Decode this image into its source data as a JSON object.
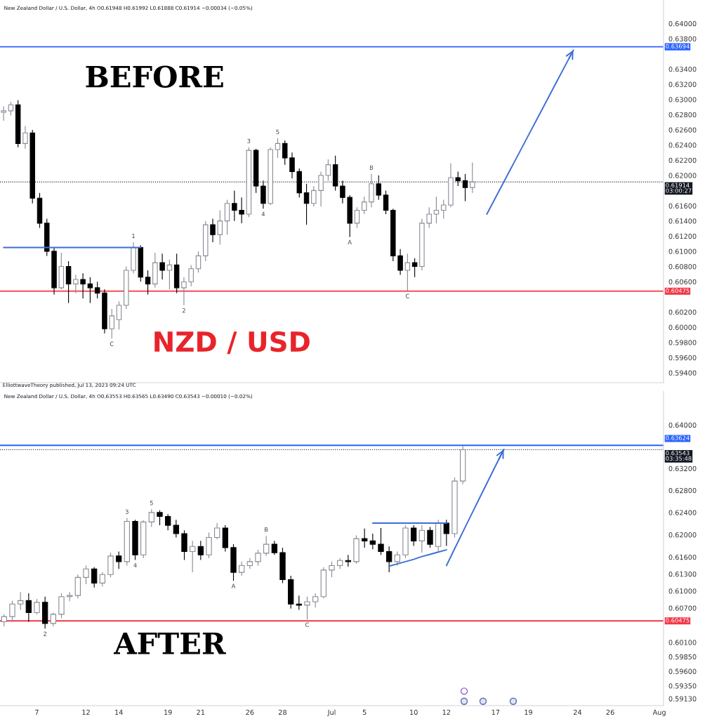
{
  "chart_data": [
    {
      "type": "candlestick",
      "title": "New Zealand Dollar / U.S. Dollar, 4h O0.61948 H0.61992 L0.61888 C0.61914 −0.00034 (−0.05%)",
      "categories": [
        null,
        null,
        null,
        null,
        null,
        null,
        null,
        null,
        null,
        null,
        null,
        null,
        null,
        null,
        null,
        null,
        null,
        null,
        null,
        null,
        null,
        null,
        null,
        null,
        null,
        null,
        null,
        null,
        null,
        null,
        null,
        null,
        null,
        null,
        null,
        null,
        null,
        null,
        null,
        null,
        null,
        null,
        null,
        null,
        null,
        null,
        null,
        null,
        null,
        null,
        null,
        null,
        null,
        null,
        null,
        null,
        null,
        null,
        null,
        null,
        null,
        null,
        null,
        null,
        null,
        null,
        null,
        null,
        null,
        null,
        null,
        null,
        null,
        null,
        null,
        null,
        null,
        null,
        null,
        null,
        null,
        null,
        null,
        null,
        null,
        null,
        null,
        null,
        null,
        null,
        null,
        null
      ],
      "ohlc": [
        [
          0.6283,
          0.6291,
          0.6272,
          0.6285
        ],
        [
          0.6285,
          0.6297,
          0.6279,
          0.6293
        ],
        [
          0.6293,
          0.6299,
          0.6237,
          0.6242
        ],
        [
          0.6242,
          0.6265,
          0.6235,
          0.6256
        ],
        [
          0.6256,
          0.626,
          0.6163,
          0.617
        ],
        [
          0.617,
          0.6177,
          0.6131,
          0.6137
        ],
        [
          0.6137,
          0.6143,
          0.6094,
          0.61
        ],
        [
          0.61,
          0.6105,
          0.6043,
          0.6052
        ],
        [
          0.6052,
          0.6098,
          0.605,
          0.608
        ],
        [
          0.608,
          0.6087,
          0.6032,
          0.6057
        ],
        [
          0.6057,
          0.6069,
          0.6045,
          0.6063
        ],
        [
          0.6063,
          0.6071,
          0.6038,
          0.6057
        ],
        [
          0.6057,
          0.6066,
          0.6032,
          0.6052
        ],
        [
          0.6052,
          0.606,
          0.6038,
          0.6045
        ],
        [
          0.6045,
          0.605,
          0.5992,
          0.5998
        ],
        [
          0.5998,
          0.6024,
          0.5985,
          0.6015
        ],
        [
          0.601,
          0.6034,
          0.5997,
          0.6029
        ],
        [
          0.6029,
          0.608,
          0.6024,
          0.6075
        ],
        [
          0.6075,
          0.6112,
          0.6071,
          0.6105
        ],
        [
          0.6105,
          0.6108,
          0.606,
          0.6066
        ],
        [
          0.6066,
          0.6075,
          0.6043,
          0.6057
        ],
        [
          0.6057,
          0.6098,
          0.6052,
          0.6085
        ],
        [
          0.6085,
          0.6097,
          0.6063,
          0.6075
        ],
        [
          0.6075,
          0.6089,
          0.605,
          0.6082
        ],
        [
          0.6082,
          0.6097,
          0.6045,
          0.6052
        ],
        [
          0.6052,
          0.6066,
          0.6029,
          0.606
        ],
        [
          0.606,
          0.6082,
          0.6054,
          0.6077
        ],
        [
          0.6077,
          0.61,
          0.6072,
          0.6094
        ],
        [
          0.6094,
          0.614,
          0.6087,
          0.6135
        ],
        [
          0.6135,
          0.6143,
          0.6112,
          0.6122
        ],
        [
          0.6122,
          0.6154,
          0.6109,
          0.614
        ],
        [
          0.614,
          0.6168,
          0.6122,
          0.6163
        ],
        [
          0.6163,
          0.618,
          0.614,
          0.6154
        ],
        [
          0.6154,
          0.6171,
          0.6137,
          0.6149
        ],
        [
          0.6149,
          0.6237,
          0.6145,
          0.6233
        ],
        [
          0.6233,
          0.6235,
          0.6177,
          0.6186
        ],
        [
          0.6186,
          0.6193,
          0.6156,
          0.6163
        ],
        [
          0.6163,
          0.6237,
          0.6161,
          0.6234
        ],
        [
          0.6234,
          0.6249,
          0.6223,
          0.6242
        ],
        [
          0.6242,
          0.6246,
          0.6214,
          0.6223
        ],
        [
          0.6223,
          0.623,
          0.6196,
          0.6205
        ],
        [
          0.6205,
          0.6209,
          0.6171,
          0.6177
        ],
        [
          0.6177,
          0.6189,
          0.6135,
          0.6163
        ],
        [
          0.6163,
          0.6186,
          0.6159,
          0.618
        ],
        [
          0.618,
          0.6205,
          0.6159,
          0.62
        ],
        [
          0.62,
          0.6221,
          0.6193,
          0.6214
        ],
        [
          0.6214,
          0.6226,
          0.618,
          0.6186
        ],
        [
          0.6186,
          0.6193,
          0.6163,
          0.6171
        ],
        [
          0.6171,
          0.6174,
          0.6119,
          0.6137
        ],
        [
          0.6137,
          0.6158,
          0.6131,
          0.6154
        ],
        [
          0.6154,
          0.6172,
          0.6149,
          0.6165
        ],
        [
          0.6165,
          0.6202,
          0.6158,
          0.6189
        ],
        [
          0.6189,
          0.62,
          0.6168,
          0.6174
        ],
        [
          0.6174,
          0.618,
          0.6149,
          0.6154
        ],
        [
          0.6154,
          0.6156,
          0.6087,
          0.6094
        ],
        [
          0.6094,
          0.6103,
          0.6069,
          0.6075
        ],
        [
          0.6075,
          0.6097,
          0.6048,
          0.6085
        ],
        [
          0.6085,
          0.6091,
          0.6066,
          0.608
        ],
        [
          0.608,
          0.6143,
          0.6075,
          0.6137
        ],
        [
          0.6137,
          0.6158,
          0.6131,
          0.6149
        ],
        [
          0.6149,
          0.6172,
          0.6137,
          0.6154
        ],
        [
          0.6154,
          0.6168,
          0.6143,
          0.6161
        ],
        [
          0.6161,
          0.6216,
          0.6158,
          0.6197
        ],
        [
          0.6197,
          0.6205,
          0.6186,
          0.6193
        ],
        [
          0.6193,
          0.6202,
          0.6166,
          0.6184
        ],
        [
          0.6184,
          0.6217,
          0.6177,
          0.61914
        ],
        null,
        null,
        null,
        null,
        null,
        null,
        null,
        null,
        null,
        null,
        null,
        null,
        null,
        null,
        null,
        null,
        null,
        null,
        null,
        null,
        null,
        null,
        null,
        null,
        null,
        null
      ],
      "colors": [
        "#878b94",
        "#878b94",
        "#000000",
        "#878b94",
        "#000000",
        "#000000",
        "#000000",
        "#000000",
        "#878b94",
        "#000000",
        "#878b94",
        "#000000",
        "#000000",
        "#000000",
        "#000000",
        "#878b94",
        "#878b94",
        "#878b94",
        "#878b94",
        "#000000",
        "#000000",
        "#878b94",
        "#000000",
        "#878b94",
        "#000000",
        "#878b94",
        "#878b94",
        "#878b94",
        "#878b94",
        "#000000",
        "#878b94",
        "#878b94",
        "#000000",
        "#000000",
        "#878b94",
        "#000000",
        "#000000",
        "#878b94",
        "#878b94",
        "#000000",
        "#000000",
        "#000000",
        "#000000",
        "#878b94",
        "#878b94",
        "#878b94",
        "#000000",
        "#000000",
        "#000000",
        "#878b94",
        "#878b94",
        "#878b94",
        "#000000",
        "#000000",
        "#000000",
        "#000000",
        "#878b94",
        "#000000",
        "#878b94",
        "#878b94",
        "#878b94",
        "#878b94",
        "#878b94",
        "#000000",
        "#000000",
        "#878b94",
        null,
        null,
        null,
        null,
        null,
        null,
        null,
        null,
        null,
        null,
        null,
        null,
        null,
        null,
        null,
        null,
        null,
        null,
        null,
        null,
        null,
        null,
        null,
        null,
        null,
        null
      ],
      "value_labels": [
        null,
        null,
        null,
        null,
        null,
        null,
        null,
        null,
        null,
        null,
        null,
        null,
        null,
        null,
        null,
        "C",
        null,
        null,
        "1",
        null,
        null,
        null,
        null,
        null,
        null,
        "2",
        null,
        null,
        null,
        null,
        null,
        null,
        null,
        null,
        "3",
        null,
        "4",
        null,
        "5",
        null,
        null,
        null,
        null,
        null,
        null,
        null,
        null,
        null,
        "A",
        null,
        null,
        "B",
        null,
        null,
        null,
        null,
        "C",
        null,
        null,
        null,
        null,
        null,
        null,
        null,
        null,
        null,
        null,
        null,
        null,
        null,
        null,
        null,
        null,
        null,
        null,
        null,
        null,
        null,
        null,
        null,
        null,
        null,
        null,
        null,
        null,
        null,
        null,
        null,
        null,
        null,
        null,
        null
      ],
      "series": [
        {
          "type": "line",
          "color": "#3d6fd6",
          "values": [
            0.6105,
            0.6105,
            0.6105,
            0.6105,
            0.6105,
            0.6105,
            0.6105,
            0.6105,
            0.6105,
            0.6105,
            0.6105,
            0.6105,
            0.6105,
            0.6105,
            0.6105,
            0.6105,
            0.6105,
            0.6105,
            0.6105,
            0.6105,
            null,
            null,
            null,
            null,
            null,
            null,
            null,
            null,
            null,
            null,
            null,
            null,
            null,
            null,
            null,
            null,
            null,
            null,
            null,
            null,
            null,
            null,
            null,
            null,
            null,
            null,
            null,
            null,
            null,
            null,
            null,
            null,
            null,
            null,
            null,
            null,
            null,
            null,
            null,
            null,
            null,
            null,
            null,
            null,
            null,
            null,
            null,
            null,
            null,
            null,
            null,
            null,
            null,
            null,
            null,
            null,
            null,
            null,
            null,
            null,
            null,
            null,
            null,
            null,
            null,
            null,
            null,
            null,
            null,
            null,
            null,
            null
          ]
        },
        {
          "type": "line",
          "color": "#3d6fd6",
          "values": [
            null,
            null,
            null,
            null,
            null,
            null,
            null,
            null,
            null,
            null,
            null,
            null,
            null,
            null,
            null,
            null,
            null,
            null,
            null,
            null,
            null,
            null,
            null,
            null,
            null,
            null,
            null,
            null,
            null,
            null,
            null,
            null,
            null,
            null,
            null,
            null,
            null,
            null,
            null,
            null,
            null,
            null,
            null,
            null,
            null,
            null,
            null,
            null,
            null,
            null,
            null,
            null,
            null,
            null,
            null,
            null,
            null,
            null,
            null,
            null,
            null,
            null,
            null,
            null,
            null,
            null,
            null,
            0.6149,
            0.6167,
            0.6185,
            0.6203,
            0.6221,
            0.6239,
            0.6257,
            0.6275,
            0.6293,
            0.6311,
            0.6329,
            0.6347,
            0.6365,
            null,
            null,
            null,
            null,
            null,
            null,
            null,
            null,
            null,
            null,
            null,
            null
          ]
        }
      ],
      "annotations": [
        "BEFORE",
        "NZD / USD"
      ],
      "ylim": [
        0.5927,
        0.6431
      ],
      "yticks": [
        {
          "value": 0.64,
          "label": "0.64000"
        },
        {
          "value": 0.638,
          "label": "0.63800"
        },
        {
          "value": 0.634,
          "label": "0.63400"
        },
        {
          "value": 0.632,
          "label": "0.63200"
        },
        {
          "value": 0.63,
          "label": "0.63000"
        },
        {
          "value": 0.628,
          "label": "0.62800"
        },
        {
          "value": 0.626,
          "label": "0.62600"
        },
        {
          "value": 0.624,
          "label": "0.62400"
        },
        {
          "value": 0.622,
          "label": "0.62200"
        },
        {
          "value": 0.62,
          "label": "0.62000"
        },
        {
          "value": 0.616,
          "label": "0.61600"
        },
        {
          "value": 0.614,
          "label": "0.61400"
        },
        {
          "value": 0.612,
          "label": "0.61200"
        },
        {
          "value": 0.61,
          "label": "0.61000"
        },
        {
          "value": 0.608,
          "label": "0.60800"
        },
        {
          "value": 0.606,
          "label": "0.60600"
        },
        {
          "value": 0.602,
          "label": "0.60200"
        },
        {
          "value": 0.6,
          "label": "0.60000"
        },
        {
          "value": 0.598,
          "label": "0.59800"
        },
        {
          "value": 0.596,
          "label": "0.59600"
        },
        {
          "value": 0.594,
          "label": "0.59400"
        }
      ],
      "ref_lines": [
        {
          "axis": "y",
          "value": 0.63694,
          "label": "0.63694",
          "color": "#2962ff"
        },
        {
          "axis": "y",
          "value": 0.61914,
          "label": "0.61914\n03:00:27",
          "color": "#131722",
          "line_style": "dotted"
        },
        {
          "axis": "y",
          "value": 0.60475,
          "label": "0.60475",
          "color": "#f23645"
        }
      ],
      "tick_labels": "y"
    },
    {
      "type": "candlestick",
      "title": "ElliottwaveTheory published, Jul 13, 2023 09:24 UTC",
      "subtitle": "New Zealand Dollar / U.S. Dollar, 4h O0.63553 H0.63565 L0.63490 C0.63543 −0.00010 (−0.02%)",
      "categories": [
        null,
        null,
        null,
        null,
        "7",
        null,
        null,
        null,
        null,
        null,
        "12",
        null,
        null,
        null,
        "14",
        null,
        null,
        null,
        null,
        null,
        "19",
        null,
        null,
        null,
        "21",
        null,
        null,
        null,
        null,
        null,
        "26",
        null,
        null,
        null,
        "28",
        null,
        null,
        null,
        null,
        null,
        "Jul",
        null,
        null,
        null,
        "5",
        null,
        null,
        null,
        null,
        null,
        "10",
        null,
        null,
        null,
        "12",
        null,
        null,
        null,
        null,
        null,
        "17",
        null,
        null,
        null,
        "19",
        null,
        null,
        null,
        null,
        null,
        "24",
        null,
        null,
        null,
        "26",
        null,
        null,
        null,
        null,
        null,
        "Aug"
      ],
      "ohlc": [
        [
          0.6046,
          0.6059,
          0.6038,
          0.6055
        ],
        [
          0.6055,
          0.6083,
          0.6046,
          0.6077
        ],
        [
          0.6077,
          0.6098,
          0.6067,
          0.6083
        ],
        [
          0.6083,
          0.6096,
          0.6046,
          0.6062
        ],
        [
          0.6062,
          0.6086,
          0.6059,
          0.608
        ],
        [
          0.608,
          0.609,
          0.6034,
          0.6043
        ],
        [
          0.6043,
          0.6062,
          0.6038,
          0.6059
        ],
        [
          0.6059,
          0.6096,
          0.6052,
          0.609
        ],
        [
          0.609,
          0.6098,
          0.6082,
          0.6092
        ],
        [
          0.6092,
          0.6129,
          0.6087,
          0.6124
        ],
        [
          0.6124,
          0.6145,
          0.6112,
          0.6139
        ],
        [
          0.6139,
          0.6142,
          0.6106,
          0.6114
        ],
        [
          0.6114,
          0.6133,
          0.6108,
          0.6129
        ],
        [
          0.6129,
          0.6168,
          0.6124,
          0.6162
        ],
        [
          0.6162,
          0.617,
          0.6139,
          0.6152
        ],
        [
          0.6152,
          0.623,
          0.6145,
          0.6224
        ],
        [
          0.6224,
          0.6227,
          0.6155,
          0.6164
        ],
        [
          0.6164,
          0.6226,
          0.6158,
          0.6223
        ],
        [
          0.6223,
          0.6246,
          0.6214,
          0.624
        ],
        [
          0.624,
          0.6244,
          0.6217,
          0.6233
        ],
        [
          0.6233,
          0.6237,
          0.6208,
          0.6217
        ],
        [
          0.6217,
          0.6227,
          0.6195,
          0.6202
        ],
        [
          0.6202,
          0.6208,
          0.6155,
          0.617
        ],
        [
          0.617,
          0.6189,
          0.6133,
          0.6179
        ],
        [
          0.6179,
          0.6189,
          0.6155,
          0.6164
        ],
        [
          0.6164,
          0.6204,
          0.6158,
          0.6195
        ],
        [
          0.6195,
          0.6221,
          0.6192,
          0.6212
        ],
        [
          0.6212,
          0.6217,
          0.617,
          0.6177
        ],
        [
          0.6177,
          0.6183,
          0.6118,
          0.6133
        ],
        [
          0.6133,
          0.6152,
          0.6127,
          0.6145
        ],
        [
          0.6145,
          0.6158,
          0.6139,
          0.6152
        ],
        [
          0.6152,
          0.6173,
          0.6145,
          0.6167
        ],
        [
          0.6167,
          0.6198,
          0.6162,
          0.6183
        ],
        [
          0.6183,
          0.6189,
          0.6164,
          0.6168
        ],
        [
          0.6168,
          0.6177,
          0.6114,
          0.612
        ],
        [
          0.612,
          0.6127,
          0.6069,
          0.6077
        ],
        [
          0.6077,
          0.6092,
          0.6067,
          0.6075
        ],
        [
          0.6075,
          0.609,
          0.605,
          0.6081
        ],
        [
          0.6081,
          0.6096,
          0.6071,
          0.609
        ],
        [
          0.609,
          0.6142,
          0.6087,
          0.6137
        ],
        [
          0.6137,
          0.6152,
          0.6124,
          0.6145
        ],
        [
          0.6145,
          0.6158,
          0.6139,
          0.6154
        ],
        [
          0.6154,
          0.6164,
          0.6143,
          0.6152
        ],
        [
          0.6152,
          0.6199,
          0.6148,
          0.6193
        ],
        [
          0.6193,
          0.6211,
          0.6177,
          0.6189
        ],
        [
          0.6189,
          0.6202,
          0.6174,
          0.6183
        ],
        [
          0.6183,
          0.6212,
          0.6164,
          0.617
        ],
        [
          0.617,
          0.6179,
          0.6133,
          0.6152
        ],
        [
          0.6152,
          0.617,
          0.6145,
          0.6164
        ],
        [
          0.6164,
          0.6217,
          0.6158,
          0.6212
        ],
        [
          0.6212,
          0.6217,
          0.618,
          0.6189
        ],
        [
          0.6189,
          0.6217,
          0.6168,
          0.6208
        ],
        [
          0.6208,
          0.6214,
          0.6177,
          0.6183
        ],
        [
          0.6179,
          0.6227,
          0.617,
          0.6221
        ],
        [
          0.6221,
          0.6227,
          0.618,
          0.6202
        ],
        [
          0.6202,
          0.6304,
          0.6195,
          0.6297
        ],
        [
          0.6297,
          0.6361,
          0.6291,
          0.63543
        ],
        null,
        null,
        null,
        null,
        null,
        null,
        null,
        null,
        null,
        null,
        null,
        null,
        null,
        null,
        null,
        null,
        null,
        null,
        null,
        null,
        null,
        null,
        null,
        null
      ],
      "colors": [
        "#878b94",
        "#878b94",
        "#878b94",
        "#000000",
        "#878b94",
        "#000000",
        "#878b94",
        "#878b94",
        "#878b94",
        "#878b94",
        "#878b94",
        "#000000",
        "#878b94",
        "#878b94",
        "#000000",
        "#878b94",
        "#000000",
        "#878b94",
        "#878b94",
        "#000000",
        "#000000",
        "#000000",
        "#000000",
        "#878b94",
        "#000000",
        "#878b94",
        "#878b94",
        "#000000",
        "#000000",
        "#878b94",
        "#878b94",
        "#878b94",
        "#878b94",
        "#000000",
        "#000000",
        "#000000",
        "#000000",
        "#878b94",
        "#878b94",
        "#878b94",
        "#878b94",
        "#878b94",
        "#000000",
        "#878b94",
        "#000000",
        "#000000",
        "#000000",
        "#000000",
        "#878b94",
        "#878b94",
        "#000000",
        "#878b94",
        "#000000",
        "#878b94",
        "#000000",
        "#878b94",
        "#878b94",
        null,
        null,
        null,
        null,
        null,
        null,
        null,
        null,
        null,
        null,
        null,
        null,
        null,
        null,
        null,
        null,
        null,
        null,
        null,
        null,
        null,
        null,
        null,
        null
      ],
      "value_labels": [
        null,
        null,
        null,
        null,
        null,
        "2",
        null,
        null,
        null,
        null,
        null,
        null,
        null,
        null,
        null,
        "3",
        "4",
        null,
        "5",
        null,
        null,
        null,
        null,
        null,
        null,
        null,
        null,
        null,
        "A",
        null,
        null,
        null,
        "B",
        null,
        null,
        null,
        null,
        "C",
        null,
        null,
        null,
        null,
        null,
        null,
        null,
        null,
        null,
        null,
        null,
        null,
        null,
        null,
        null,
        null,
        null,
        null,
        null,
        null,
        null,
        null,
        null,
        null,
        null,
        null,
        null,
        null,
        null,
        null,
        null,
        null,
        null,
        null,
        null,
        null,
        null,
        null,
        null,
        null,
        null,
        null,
        null
      ],
      "series": [
        {
          "type": "line",
          "color": "#3d6fd6",
          "values": [
            null,
            null,
            null,
            null,
            null,
            null,
            null,
            null,
            null,
            null,
            null,
            null,
            null,
            null,
            null,
            null,
            null,
            null,
            null,
            null,
            null,
            null,
            null,
            null,
            null,
            null,
            null,
            null,
            null,
            null,
            null,
            null,
            null,
            null,
            null,
            null,
            null,
            null,
            null,
            null,
            null,
            null,
            null,
            null,
            null,
            0.6221,
            0.6221,
            0.6221,
            0.6221,
            0.6221,
            0.6221,
            0.6221,
            0.6221,
            0.6221,
            0.6221,
            null,
            null,
            null,
            null,
            null,
            null,
            null,
            null,
            null,
            null,
            null,
            null,
            null,
            null,
            null,
            null,
            null,
            null,
            null,
            null,
            null,
            null,
            null,
            null,
            null,
            null
          ]
        },
        {
          "type": "line",
          "color": "#3d6fd6",
          "values": [
            null,
            null,
            null,
            null,
            null,
            null,
            null,
            null,
            null,
            null,
            null,
            null,
            null,
            null,
            null,
            null,
            null,
            null,
            null,
            null,
            null,
            null,
            null,
            null,
            null,
            null,
            null,
            null,
            null,
            null,
            null,
            null,
            null,
            null,
            null,
            null,
            null,
            null,
            null,
            null,
            null,
            null,
            null,
            null,
            null,
            null,
            null,
            0.6144,
            0.6148,
            0.6152,
            0.6156,
            0.6161,
            0.6165,
            0.6169,
            0.6173,
            null,
            null,
            null,
            null,
            null,
            null,
            null,
            null,
            null,
            null,
            null,
            null,
            null,
            null,
            null,
            null,
            null,
            null,
            null,
            null,
            null,
            null,
            null,
            null,
            null,
            null
          ]
        },
        {
          "type": "line",
          "color": "#3d6fd6",
          "values": [
            null,
            null,
            null,
            null,
            null,
            null,
            null,
            null,
            null,
            null,
            null,
            null,
            null,
            null,
            null,
            null,
            null,
            null,
            null,
            null,
            null,
            null,
            null,
            null,
            null,
            null,
            null,
            null,
            null,
            null,
            null,
            null,
            null,
            null,
            null,
            null,
            null,
            null,
            null,
            null,
            null,
            null,
            null,
            null,
            null,
            null,
            null,
            null,
            null,
            null,
            null,
            null,
            null,
            null,
            0.6145,
            0.6175,
            0.6205,
            0.6235,
            0.6265,
            0.6295,
            0.6325,
            0.6355,
            null,
            null,
            null,
            null,
            null,
            null,
            null,
            null,
            null,
            null,
            null,
            null,
            null,
            null,
            null,
            null,
            null,
            null,
            null
          ]
        }
      ],
      "annotations": [
        "AFTER"
      ],
      "log": true,
      "ylim": [
        0.5901,
        0.6463
      ],
      "yticks": [
        {
          "value": 0.64,
          "label": "0.64000"
        },
        {
          "value": 0.632,
          "label": "0.63200"
        },
        {
          "value": 0.628,
          "label": "0.62800"
        },
        {
          "value": 0.624,
          "label": "0.62400"
        },
        {
          "value": 0.62,
          "label": "0.62000"
        },
        {
          "value": 0.616,
          "label": "0.61600"
        },
        {
          "value": 0.613,
          "label": "0.61300"
        },
        {
          "value": 0.61,
          "label": "0.61000"
        },
        {
          "value": 0.607,
          "label": "0.60700"
        },
        {
          "value": 0.601,
          "label": "0.60100"
        },
        {
          "value": 0.5985,
          "label": "0.59850"
        },
        {
          "value": 0.596,
          "label": "0.59600"
        },
        {
          "value": 0.5935,
          "label": "0.59350"
        },
        {
          "value": 0.5913,
          "label": "0.59130"
        }
      ],
      "ref_lines": [
        {
          "axis": "y",
          "value": 0.63624,
          "label": "0.63624",
          "color": "#2962ff"
        },
        {
          "axis": "y",
          "value": 0.63543,
          "label": "0.63543\n03:35:48",
          "color": "#131722",
          "line_style": "dotted"
        },
        {
          "axis": "y",
          "value": 0.60475,
          "label": "0.60475",
          "color": "#f23645"
        }
      ]
    }
  ]
}
